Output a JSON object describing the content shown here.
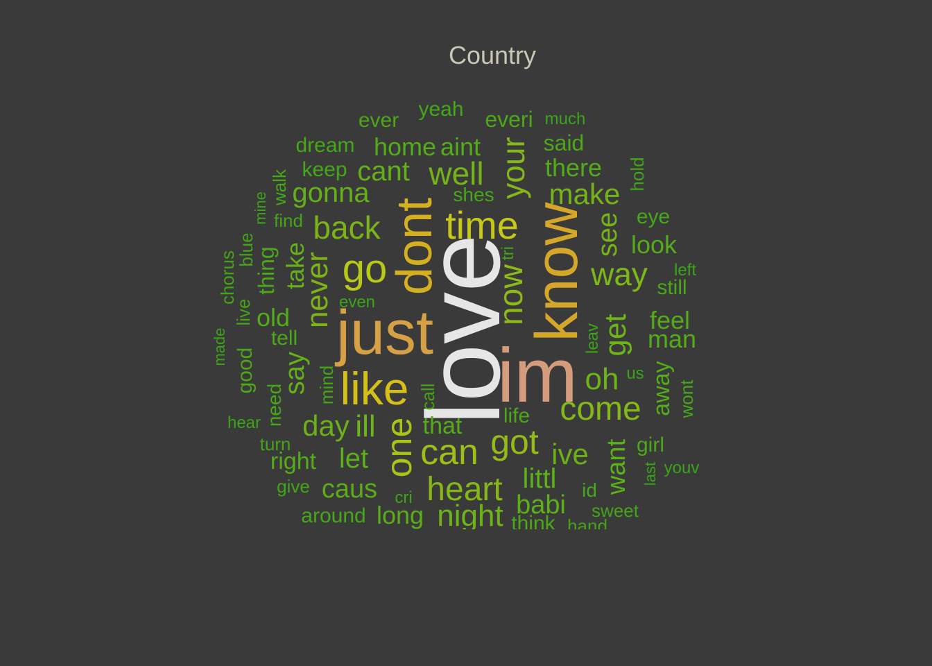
{
  "title": "Country",
  "colors": {
    "background": "#3a3a3a",
    "title": "#c9c7b5"
  },
  "words": [
    {
      "text": "love",
      "color": "#e6e6e6"
    },
    {
      "text": "im",
      "color": "#d49c7c"
    },
    {
      "text": "just",
      "color": "#d6a045"
    },
    {
      "text": "know",
      "color": "#d4a62a"
    },
    {
      "text": "dont",
      "color": "#d4b020"
    },
    {
      "text": "like",
      "color": "#d4c018"
    },
    {
      "text": "time",
      "color": "#c8c818"
    },
    {
      "text": "go",
      "color": "#b8c818"
    },
    {
      "text": "one",
      "color": "#a8c418"
    },
    {
      "text": "can",
      "color": "#9cc018"
    },
    {
      "text": "got",
      "color": "#94bc18"
    },
    {
      "text": "now",
      "color": "#8cba18"
    },
    {
      "text": "come",
      "color": "#84b818"
    },
    {
      "text": "heart",
      "color": "#84b818"
    },
    {
      "text": "your",
      "color": "#84b818"
    },
    {
      "text": "way",
      "color": "#7cb818"
    },
    {
      "text": "never",
      "color": "#7cb418"
    },
    {
      "text": "back",
      "color": "#7cb418"
    },
    {
      "text": "well",
      "color": "#74b418"
    },
    {
      "text": "make",
      "color": "#74b418"
    },
    {
      "text": "see",
      "color": "#74b418"
    },
    {
      "text": "get",
      "color": "#6cb418"
    },
    {
      "text": "oh",
      "color": "#6cb418"
    },
    {
      "text": "night",
      "color": "#6cb418"
    },
    {
      "text": "ill",
      "color": "#6cb418"
    },
    {
      "text": "day",
      "color": "#6cb018"
    },
    {
      "text": "ive",
      "color": "#6cb018"
    },
    {
      "text": "say",
      "color": "#64b018"
    },
    {
      "text": "take",
      "color": "#64b018"
    },
    {
      "text": "gonna",
      "color": "#64b018"
    },
    {
      "text": "cant",
      "color": "#64b018"
    },
    {
      "text": "let",
      "color": "#5cb018"
    },
    {
      "text": "littl",
      "color": "#5cb018"
    },
    {
      "text": "want",
      "color": "#5cb018"
    },
    {
      "text": "babi",
      "color": "#5cb018"
    },
    {
      "text": "caus",
      "color": "#5cac18"
    },
    {
      "text": "long",
      "color": "#5cac18"
    },
    {
      "text": "old",
      "color": "#54ac18"
    },
    {
      "text": "home",
      "color": "#54ac18"
    },
    {
      "text": "aint",
      "color": "#54ac18"
    },
    {
      "text": "there",
      "color": "#54ac18"
    },
    {
      "text": "man",
      "color": "#54ac18"
    },
    {
      "text": "feel",
      "color": "#54ac18"
    },
    {
      "text": "look",
      "color": "#54ac18"
    },
    {
      "text": "away",
      "color": "#54ac18"
    },
    {
      "text": "right",
      "color": "#54ac18"
    },
    {
      "text": "that",
      "color": "#54ac18"
    },
    {
      "text": "said",
      "color": "#4ca818"
    },
    {
      "text": "everi",
      "color": "#4ca818"
    },
    {
      "text": "thing",
      "color": "#4ca818"
    },
    {
      "text": "still",
      "color": "#4ca818"
    },
    {
      "text": "good",
      "color": "#4ca818"
    },
    {
      "text": "girl",
      "color": "#4ca818"
    },
    {
      "text": "think",
      "color": "#4ca818"
    },
    {
      "text": "life",
      "color": "#4ca818"
    },
    {
      "text": "tell",
      "color": "#4ca818"
    },
    {
      "text": "ever",
      "color": "#4ca818"
    },
    {
      "text": "dream",
      "color": "#44a818"
    },
    {
      "text": "eye",
      "color": "#44a818"
    },
    {
      "text": "need",
      "color": "#44a818"
    },
    {
      "text": "around",
      "color": "#44a818"
    },
    {
      "text": "keep",
      "color": "#44a818"
    },
    {
      "text": "yeah",
      "color": "#44a818"
    },
    {
      "text": "shes",
      "color": "#44a818"
    },
    {
      "text": "id",
      "color": "#44a818"
    },
    {
      "text": "walk",
      "color": "#44a818"
    },
    {
      "text": "wont",
      "color": "#44a818"
    },
    {
      "text": "mind",
      "color": "#44a418"
    },
    {
      "text": "call",
      "color": "#44a418"
    },
    {
      "text": "live",
      "color": "#44a418"
    },
    {
      "text": "chorus",
      "color": "#44a418"
    },
    {
      "text": "blue",
      "color": "#44a418"
    },
    {
      "text": "turn",
      "color": "#44a418"
    },
    {
      "text": "hold",
      "color": "#44a418"
    },
    {
      "text": "find",
      "color": "#44a418"
    },
    {
      "text": "sweet",
      "color": "#44a418"
    },
    {
      "text": "hand",
      "color": "#44a418"
    },
    {
      "text": "give",
      "color": "#44a418"
    },
    {
      "text": "much",
      "color": "#3ca418"
    },
    {
      "text": "hear",
      "color": "#3ca418"
    },
    {
      "text": "left",
      "color": "#3ca418"
    },
    {
      "text": "youv",
      "color": "#3ca418"
    },
    {
      "text": "leav",
      "color": "#3ca418"
    },
    {
      "text": "last",
      "color": "#3ca418"
    },
    {
      "text": "us",
      "color": "#3ca418"
    },
    {
      "text": "tri",
      "color": "#3ca418"
    },
    {
      "text": "cri",
      "color": "#3ca418"
    },
    {
      "text": "even",
      "color": "#3ca418"
    },
    {
      "text": "mine",
      "color": "#3ca418"
    },
    {
      "text": "made",
      "color": "#3ca418"
    }
  ]
}
